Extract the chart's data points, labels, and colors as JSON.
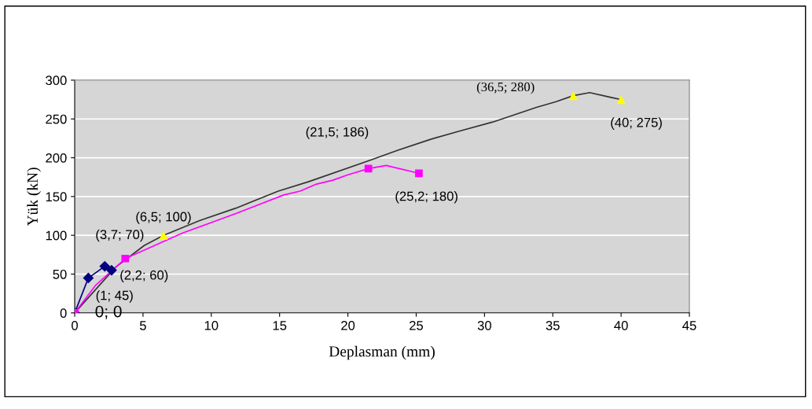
{
  "chart_data": {
    "type": "line",
    "xlabel": "Deplasman (mm)",
    "ylabel": "Yük (kN)",
    "xlim": [
      0,
      45
    ],
    "xticks": [
      0,
      5,
      10,
      15,
      20,
      25,
      30,
      35,
      40,
      45
    ],
    "ylim": [
      0,
      300
    ],
    "yticks": [
      0,
      50,
      100,
      150,
      200,
      250,
      300
    ],
    "grid": "y",
    "legend": false,
    "series": [
      {
        "color": "#333333",
        "marker": "none",
        "x": [
          0,
          3.0,
          5.1,
          6.5,
          9.3,
          11.8,
          14.9,
          17.1,
          21.5,
          23.7,
          26.1,
          28.1,
          30.6,
          33.8,
          35.2,
          36.5,
          37.7,
          39.2,
          40
        ],
        "values": [
          0,
          59,
          87,
          100,
          120,
          135,
          157,
          169,
          196,
          210,
          224,
          234,
          246,
          265,
          272,
          280,
          284,
          278,
          275
        ]
      },
      {
        "color": "#ff00ff",
        "marker": "none",
        "x": [
          0,
          1.55,
          3.7,
          7.9,
          11.8,
          15.3,
          16.5,
          17.7,
          18.9,
          20.0,
          21.5,
          22.8,
          25.2
        ],
        "values": [
          0,
          36,
          70,
          103,
          128,
          152,
          157,
          166,
          171,
          178,
          186,
          190,
          180
        ]
      },
      {
        "color": "#000080",
        "marker": "diamond",
        "x": [
          0,
          1,
          2.2,
          2.7
        ],
        "values": [
          0,
          45,
          60,
          55
        ]
      },
      {
        "type": "scatter",
        "color": "#ffff00",
        "marker": "triangle",
        "x": [
          0,
          6.5,
          36.5,
          40
        ],
        "values": [
          0,
          100,
          280,
          275
        ]
      },
      {
        "type": "scatter",
        "color": "#ff00ff",
        "marker": "square",
        "x": [
          0,
          3.7,
          21.5,
          25.2
        ],
        "values": [
          0,
          70,
          186,
          180
        ]
      }
    ],
    "annotations": [
      {
        "text": "0; 0",
        "x": 0,
        "y": 0
      },
      {
        "text": "(1; 45)",
        "x": 1,
        "y": 45
      },
      {
        "text": "(2,2; 60)",
        "x": 2.2,
        "y": 60
      },
      {
        "text": "(3,7; 70)",
        "x": 3.7,
        "y": 70
      },
      {
        "text": "(6,5; 100)",
        "x": 6.5,
        "y": 100
      },
      "(21,5; 186)",
      {
        "text": "(25,2; 180)",
        "x": 25.2,
        "y": 180
      },
      {
        "text": "(36,5; 280)",
        "x": 36.5,
        "y": 280
      },
      {
        "text": "(40; 275)",
        "x": 40,
        "y": 275
      }
    ]
  }
}
